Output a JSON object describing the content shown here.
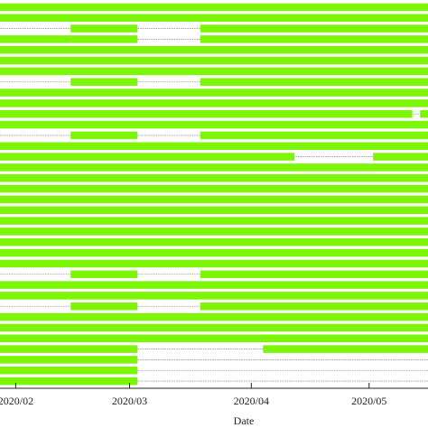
{
  "chart_data": {
    "type": "bar",
    "orientation": "horizontal-availability",
    "xlabel": "Date",
    "ylabel": "",
    "title": "",
    "xlim": [
      "2020-01-28",
      "2020-05-16"
    ],
    "x_ticks": [
      {
        "date": "2020-02-01",
        "label": "2020/02"
      },
      {
        "date": "2020-03-01",
        "label": "2020/03"
      },
      {
        "date": "2020-04-01",
        "label": "2020/04"
      },
      {
        "date": "2020-05-01",
        "label": "2020/05"
      }
    ],
    "bar_color": "#7cf507",
    "gap_line_color": "#999999",
    "grid": false,
    "legend": "none",
    "rows": [
      {
        "segments": [
          [
            "2020-01-28",
            "2020-05-16"
          ]
        ]
      },
      {
        "segments": [
          [
            "2020-01-28",
            "2020-05-16"
          ]
        ]
      },
      {
        "segments": [
          [
            "2020-02-15",
            "2020-03-03"
          ],
          [
            "2020-03-19",
            "2020-05-16"
          ]
        ]
      },
      {
        "segments": [
          [
            "2020-01-28",
            "2020-02-15"
          ],
          [
            "2020-02-15",
            "2020-03-03"
          ],
          [
            "2020-03-19",
            "2020-05-16"
          ]
        ]
      },
      {
        "segments": [
          [
            "2020-01-28",
            "2020-05-16"
          ]
        ]
      },
      {
        "segments": [
          [
            "2020-01-28",
            "2020-05-16"
          ]
        ]
      },
      {
        "segments": [
          [
            "2020-01-28",
            "2020-05-16"
          ]
        ]
      },
      {
        "segments": [
          [
            "2020-02-15",
            "2020-03-03"
          ],
          [
            "2020-03-19",
            "2020-05-16"
          ]
        ]
      },
      {
        "segments": [
          [
            "2020-01-28",
            "2020-05-16"
          ]
        ]
      },
      {
        "segments": [
          [
            "2020-01-28",
            "2020-05-16"
          ]
        ]
      },
      {
        "segments": [
          [
            "2020-01-28",
            "2020-05-12"
          ],
          [
            "2020-05-14",
            "2020-05-16"
          ]
        ]
      },
      {
        "segments": [
          [
            "2020-01-28",
            "2020-05-16"
          ]
        ]
      },
      {
        "segments": [
          [
            "2020-02-15",
            "2020-03-03"
          ],
          [
            "2020-03-19",
            "2020-05-16"
          ]
        ]
      },
      {
        "segments": [
          [
            "2020-01-28",
            "2020-05-16"
          ]
        ]
      },
      {
        "segments": [
          [
            "2020-01-28",
            "2020-04-12"
          ],
          [
            "2020-05-02",
            "2020-05-16"
          ]
        ]
      },
      {
        "segments": [
          [
            "2020-01-28",
            "2020-05-16"
          ]
        ]
      },
      {
        "segments": [
          [
            "2020-01-28",
            "2020-05-16"
          ]
        ]
      },
      {
        "segments": [
          [
            "2020-01-28",
            "2020-05-16"
          ]
        ]
      },
      {
        "segments": [
          [
            "2020-01-28",
            "2020-05-16"
          ]
        ]
      },
      {
        "segments": [
          [
            "2020-01-28",
            "2020-05-16"
          ]
        ]
      },
      {
        "segments": [
          [
            "2020-01-28",
            "2020-05-16"
          ]
        ]
      },
      {
        "segments": [
          [
            "2020-01-28",
            "2020-05-16"
          ]
        ]
      },
      {
        "segments": [
          [
            "2020-01-28",
            "2020-05-16"
          ]
        ]
      },
      {
        "segments": [
          [
            "2020-01-28",
            "2020-05-16"
          ]
        ]
      },
      {
        "segments": [
          [
            "2020-01-28",
            "2020-05-16"
          ]
        ]
      },
      {
        "segments": [
          [
            "2020-02-15",
            "2020-03-03"
          ],
          [
            "2020-03-19",
            "2020-05-16"
          ]
        ]
      },
      {
        "segments": [
          [
            "2020-01-28",
            "2020-05-16"
          ]
        ]
      },
      {
        "segments": [
          [
            "2020-01-28",
            "2020-05-16"
          ]
        ]
      },
      {
        "segments": [
          [
            "2020-02-15",
            "2020-03-03"
          ],
          [
            "2020-03-19",
            "2020-05-16"
          ]
        ]
      },
      {
        "segments": [
          [
            "2020-01-28",
            "2020-05-16"
          ]
        ]
      },
      {
        "segments": [
          [
            "2020-01-28",
            "2020-05-16"
          ]
        ]
      },
      {
        "segments": [
          [
            "2020-01-28",
            "2020-05-16"
          ]
        ]
      },
      {
        "segments": [
          [
            "2020-01-28",
            "2020-03-03"
          ],
          [
            "2020-04-04",
            "2020-05-16"
          ]
        ]
      },
      {
        "segments": [
          [
            "2020-01-28",
            "2020-03-03"
          ]
        ]
      },
      {
        "segments": [
          [
            "2020-01-28",
            "2020-03-03"
          ]
        ]
      },
      {
        "segments": [
          [
            "2020-01-28",
            "2020-03-03"
          ]
        ]
      }
    ]
  }
}
